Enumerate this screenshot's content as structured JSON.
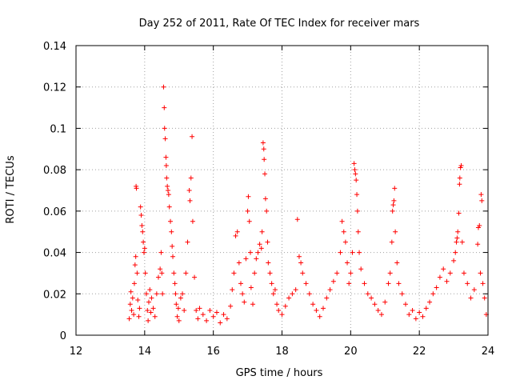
{
  "chart_data": {
    "type": "scatter",
    "title": "Day 252 of 2011, Rate Of TEC Index for receiver mars",
    "xlabel": "GPS time / hours",
    "ylabel": "ROTI / TECUs",
    "xlim": [
      12,
      24
    ],
    "ylim": [
      0,
      0.14
    ],
    "grid": true,
    "marker": "plus",
    "color": "#ff0000",
    "x_ticks": [
      12,
      14,
      16,
      18,
      20,
      22,
      24
    ],
    "x_tick_labels": [
      "12",
      "14",
      "16",
      "18",
      "20",
      "22",
      "24"
    ],
    "y_ticks": [
      0,
      0.02,
      0.04,
      0.06,
      0.08,
      0.1,
      0.12,
      0.14
    ],
    "y_tick_labels": [
      "0",
      "0.02",
      "0.04",
      "0.06",
      "0.08",
      "0.1",
      "0.12",
      "0.14"
    ],
    "series": [
      {
        "name": "ROTI",
        "points": [
          [
            13.55,
            0.008
          ],
          [
            13.58,
            0.015
          ],
          [
            13.6,
            0.021
          ],
          [
            13.62,
            0.012
          ],
          [
            13.65,
            0.018
          ],
          [
            13.68,
            0.01
          ],
          [
            13.7,
            0.025
          ],
          [
            13.72,
            0.034
          ],
          [
            13.74,
            0.038
          ],
          [
            13.75,
            0.072
          ],
          [
            13.76,
            0.071
          ],
          [
            13.78,
            0.03
          ],
          [
            13.8,
            0.017
          ],
          [
            13.83,
            0.009
          ],
          [
            13.85,
            0.013
          ],
          [
            13.88,
            0.062
          ],
          [
            13.9,
            0.058
          ],
          [
            13.92,
            0.053
          ],
          [
            13.94,
            0.05
          ],
          [
            13.96,
            0.045
          ],
          [
            13.98,
            0.04
          ],
          [
            14.0,
            0.042
          ],
          [
            14.02,
            0.03
          ],
          [
            14.05,
            0.02
          ],
          [
            14.08,
            0.012
          ],
          [
            14.1,
            0.007
          ],
          [
            14.12,
            0.016
          ],
          [
            14.15,
            0.022
          ],
          [
            14.18,
            0.011
          ],
          [
            14.2,
            0.018
          ],
          [
            14.25,
            0.013
          ],
          [
            14.3,
            0.009
          ],
          [
            14.35,
            0.02
          ],
          [
            14.4,
            0.028
          ],
          [
            14.45,
            0.032
          ],
          [
            14.48,
            0.04
          ],
          [
            14.5,
            0.03
          ],
          [
            14.52,
            0.02
          ],
          [
            14.55,
            0.12
          ],
          [
            14.57,
            0.11
          ],
          [
            14.58,
            0.1
          ],
          [
            14.6,
            0.095
          ],
          [
            14.62,
            0.086
          ],
          [
            14.63,
            0.082
          ],
          [
            14.64,
            0.076
          ],
          [
            14.66,
            0.072
          ],
          [
            14.68,
            0.07
          ],
          [
            14.7,
            0.068
          ],
          [
            14.72,
            0.062
          ],
          [
            14.75,
            0.055
          ],
          [
            14.78,
            0.05
          ],
          [
            14.8,
            0.043
          ],
          [
            14.82,
            0.038
          ],
          [
            14.85,
            0.03
          ],
          [
            14.88,
            0.025
          ],
          [
            14.9,
            0.02
          ],
          [
            14.92,
            0.015
          ],
          [
            14.95,
            0.009
          ],
          [
            14.98,
            0.013
          ],
          [
            15.0,
            0.007
          ],
          [
            15.05,
            0.018
          ],
          [
            15.1,
            0.02
          ],
          [
            15.15,
            0.012
          ],
          [
            15.2,
            0.03
          ],
          [
            15.25,
            0.045
          ],
          [
            15.3,
            0.07
          ],
          [
            15.32,
            0.065
          ],
          [
            15.35,
            0.076
          ],
          [
            15.38,
            0.096
          ],
          [
            15.4,
            0.055
          ],
          [
            15.45,
            0.028
          ],
          [
            15.5,
            0.012
          ],
          [
            15.55,
            0.008
          ],
          [
            15.6,
            0.013
          ],
          [
            15.7,
            0.01
          ],
          [
            15.8,
            0.007
          ],
          [
            15.9,
            0.012
          ],
          [
            16.0,
            0.009
          ],
          [
            16.1,
            0.011
          ],
          [
            16.2,
            0.006
          ],
          [
            16.3,
            0.01
          ],
          [
            16.4,
            0.008
          ],
          [
            16.5,
            0.014
          ],
          [
            16.55,
            0.022
          ],
          [
            16.6,
            0.03
          ],
          [
            16.65,
            0.048
          ],
          [
            16.7,
            0.05
          ],
          [
            16.75,
            0.035
          ],
          [
            16.8,
            0.025
          ],
          [
            16.85,
            0.02
          ],
          [
            16.9,
            0.016
          ],
          [
            16.95,
            0.037
          ],
          [
            17.0,
            0.06
          ],
          [
            17.02,
            0.067
          ],
          [
            17.05,
            0.055
          ],
          [
            17.08,
            0.04
          ],
          [
            17.1,
            0.023
          ],
          [
            17.15,
            0.015
          ],
          [
            17.2,
            0.03
          ],
          [
            17.25,
            0.037
          ],
          [
            17.3,
            0.04
          ],
          [
            17.35,
            0.044
          ],
          [
            17.4,
            0.042
          ],
          [
            17.42,
            0.05
          ],
          [
            17.45,
            0.093
          ],
          [
            17.47,
            0.09
          ],
          [
            17.48,
            0.085
          ],
          [
            17.5,
            0.078
          ],
          [
            17.52,
            0.066
          ],
          [
            17.55,
            0.06
          ],
          [
            17.58,
            0.045
          ],
          [
            17.6,
            0.035
          ],
          [
            17.65,
            0.03
          ],
          [
            17.7,
            0.025
          ],
          [
            17.75,
            0.02
          ],
          [
            17.8,
            0.022
          ],
          [
            17.85,
            0.015
          ],
          [
            17.9,
            0.012
          ],
          [
            18.0,
            0.01
          ],
          [
            18.1,
            0.014
          ],
          [
            18.2,
            0.018
          ],
          [
            18.3,
            0.02
          ],
          [
            18.4,
            0.022
          ],
          [
            18.45,
            0.056
          ],
          [
            18.5,
            0.038
          ],
          [
            18.55,
            0.035
          ],
          [
            18.6,
            0.03
          ],
          [
            18.7,
            0.025
          ],
          [
            18.8,
            0.02
          ],
          [
            18.9,
            0.015
          ],
          [
            19.0,
            0.012
          ],
          [
            19.1,
            0.009
          ],
          [
            19.2,
            0.013
          ],
          [
            19.3,
            0.018
          ],
          [
            19.4,
            0.022
          ],
          [
            19.5,
            0.026
          ],
          [
            19.6,
            0.03
          ],
          [
            19.7,
            0.04
          ],
          [
            19.75,
            0.055
          ],
          [
            19.8,
            0.05
          ],
          [
            19.85,
            0.045
          ],
          [
            19.9,
            0.035
          ],
          [
            19.95,
            0.025
          ],
          [
            20.0,
            0.03
          ],
          [
            20.05,
            0.04
          ],
          [
            20.1,
            0.083
          ],
          [
            20.12,
            0.08
          ],
          [
            20.14,
            0.078
          ],
          [
            20.16,
            0.075
          ],
          [
            20.18,
            0.068
          ],
          [
            20.2,
            0.06
          ],
          [
            20.22,
            0.05
          ],
          [
            20.25,
            0.04
          ],
          [
            20.3,
            0.032
          ],
          [
            20.4,
            0.025
          ],
          [
            20.5,
            0.02
          ],
          [
            20.6,
            0.018
          ],
          [
            20.7,
            0.015
          ],
          [
            20.8,
            0.012
          ],
          [
            20.9,
            0.01
          ],
          [
            21.0,
            0.016
          ],
          [
            21.1,
            0.025
          ],
          [
            21.15,
            0.03
          ],
          [
            21.2,
            0.045
          ],
          [
            21.22,
            0.06
          ],
          [
            21.24,
            0.063
          ],
          [
            21.26,
            0.065
          ],
          [
            21.28,
            0.071
          ],
          [
            21.3,
            0.05
          ],
          [
            21.35,
            0.035
          ],
          [
            21.4,
            0.025
          ],
          [
            21.5,
            0.02
          ],
          [
            21.6,
            0.015
          ],
          [
            21.7,
            0.01
          ],
          [
            21.8,
            0.012
          ],
          [
            21.9,
            0.008
          ],
          [
            22.0,
            0.011
          ],
          [
            22.1,
            0.009
          ],
          [
            22.2,
            0.013
          ],
          [
            22.3,
            0.016
          ],
          [
            22.4,
            0.02
          ],
          [
            22.5,
            0.023
          ],
          [
            22.6,
            0.028
          ],
          [
            22.7,
            0.032
          ],
          [
            22.8,
            0.026
          ],
          [
            22.9,
            0.03
          ],
          [
            23.0,
            0.036
          ],
          [
            23.05,
            0.04
          ],
          [
            23.08,
            0.045
          ],
          [
            23.1,
            0.047
          ],
          [
            23.12,
            0.05
          ],
          [
            23.15,
            0.059
          ],
          [
            23.17,
            0.073
          ],
          [
            23.18,
            0.076
          ],
          [
            23.2,
            0.081
          ],
          [
            23.22,
            0.082
          ],
          [
            23.25,
            0.045
          ],
          [
            23.3,
            0.03
          ],
          [
            23.4,
            0.025
          ],
          [
            23.5,
            0.018
          ],
          [
            23.6,
            0.022
          ],
          [
            23.7,
            0.044
          ],
          [
            23.72,
            0.052
          ],
          [
            23.75,
            0.053
          ],
          [
            23.78,
            0.03
          ],
          [
            23.8,
            0.068
          ],
          [
            23.82,
            0.065
          ],
          [
            23.85,
            0.025
          ],
          [
            23.9,
            0.018
          ],
          [
            23.95,
            0.01
          ]
        ]
      }
    ]
  }
}
